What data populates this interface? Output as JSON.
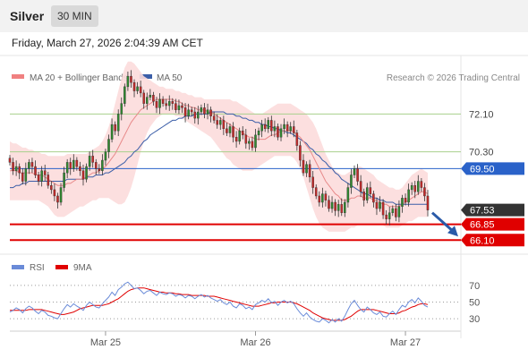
{
  "header": {
    "title": "Silver",
    "timeframe": "30 MIN"
  },
  "timestamp": "Friday, March 27, 2026 2:04:39 AM CET",
  "legend": {
    "items": [
      {
        "label": "MA 20 + Bollinger Bands",
        "color": "#f08080"
      },
      {
        "label": "MA 50",
        "color": "#3b5ea8"
      }
    ],
    "credit": "Research © 2026 Trading Central"
  },
  "rsi_legend": {
    "items": [
      {
        "label": "RSI",
        "color": "#6a8bd8"
      },
      {
        "label": "9MA",
        "color": "#e00000"
      }
    ]
  },
  "colors": {
    "candle_up": "#2f8a2f",
    "candle_down": "#c62828",
    "bollinger_fill": "#fcdcdc",
    "ma20": "#e88a8a",
    "ma50": "#3b5ea8",
    "resistance": "#a8d08d",
    "pivot": "#2a62c9",
    "support": "#e00000",
    "last_price": "#333333"
  },
  "chart_data": [
    {
      "type": "candlestick",
      "title": "Silver 30 MIN",
      "x_ticks": [
        "Mar 25",
        "Mar 26",
        "Mar 27"
      ],
      "ylim": [
        65.6,
        74.8
      ],
      "levels": [
        {
          "label": "72.10",
          "value": 72.1,
          "role": "resistance"
        },
        {
          "label": "70.30",
          "value": 70.3,
          "role": "resistance"
        },
        {
          "label": "69.50",
          "value": 69.5,
          "role": "pivot"
        },
        {
          "label": "67.53",
          "value": 67.53,
          "role": "last"
        },
        {
          "label": "66.85",
          "value": 66.85,
          "role": "support"
        },
        {
          "label": "66.10",
          "value": 66.1,
          "role": "support"
        }
      ],
      "close": [
        69.8,
        69.4,
        69.6,
        69.3,
        68.9,
        69.5,
        69.8,
        69.6,
        69.2,
        68.9,
        69.4,
        69.2,
        68.7,
        68.5,
        68.2,
        67.9,
        68.6,
        69.3,
        69.8,
        69.5,
        69.9,
        69.6,
        69.4,
        69.0,
        69.6,
        70.1,
        69.8,
        69.5,
        69.4,
        69.9,
        70.3,
        70.9,
        71.6,
        71.3,
        72.1,
        72.6,
        73.4,
        73.9,
        73.6,
        73.2,
        73.4,
        73.1,
        72.6,
        72.9,
        73.0,
        72.7,
        72.4,
        72.8,
        72.6,
        72.5,
        72.7,
        72.6,
        72.3,
        72.5,
        72.4,
        72.0,
        72.3,
        72.2,
        71.9,
        72.2,
        72.4,
        72.1,
        72.3,
        72.0,
        71.8,
        71.6,
        71.8,
        71.4,
        71.2,
        71.5,
        71.0,
        70.8,
        71.3,
        71.1,
        70.7,
        70.8,
        70.5,
        71.1,
        71.3,
        71.6,
        71.4,
        71.8,
        71.3,
        71.5,
        71.0,
        71.4,
        71.6,
        71.3,
        71.5,
        71.2,
        70.6,
        69.9,
        69.3,
        69.7,
        69.1,
        68.6,
        68.2,
        67.9,
        68.3,
        68.0,
        67.6,
        67.9,
        67.5,
        67.8,
        67.4,
        67.9,
        68.6,
        69.2,
        69.5,
        68.9,
        68.4,
        68.0,
        68.6,
        68.3,
        67.9,
        67.6,
        67.9,
        67.3,
        67.1,
        67.4,
        67.6,
        67.2,
        67.7,
        68.1,
        67.9,
        68.5,
        68.7,
        68.4,
        68.9,
        68.6,
        68.2,
        67.53
      ],
      "ma20": [
        69.4,
        69.4,
        69.4,
        69.3,
        69.3,
        69.3,
        69.3,
        69.3,
        69.2,
        69.2,
        69.2,
        69.1,
        69.0,
        68.9,
        68.8,
        68.7,
        68.7,
        68.7,
        68.8,
        68.8,
        68.9,
        69.0,
        69.0,
        69.0,
        69.1,
        69.2,
        69.3,
        69.3,
        69.4,
        69.5,
        69.6,
        69.8,
        70.0,
        70.2,
        70.5,
        70.8,
        71.1,
        71.4,
        71.7,
        71.9,
        72.1,
        72.3,
        72.4,
        72.5,
        72.6,
        72.7,
        72.8,
        72.8,
        72.8,
        72.8,
        72.8,
        72.8,
        72.7,
        72.7,
        72.6,
        72.5,
        72.5,
        72.4,
        72.4,
        72.3,
        72.3,
        72.3,
        72.2,
        72.2,
        72.1,
        72.0,
        71.9,
        71.8,
        71.7,
        71.6,
        71.5,
        71.4,
        71.3,
        71.2,
        71.1,
        71.0,
        71.0,
        70.9,
        70.9,
        70.9,
        70.9,
        71.0,
        71.1,
        71.1,
        71.2,
        71.3,
        71.3,
        71.3,
        71.3,
        71.3,
        71.1,
        71.0,
        70.8,
        70.6,
        70.4,
        70.1,
        69.8,
        69.5,
        69.2,
        68.9,
        68.7,
        68.5,
        68.3,
        68.2,
        68.0,
        68.0,
        68.0,
        68.1,
        68.1,
        68.2,
        68.2,
        68.1,
        68.1,
        68.1,
        68.0,
        68.0,
        67.9,
        67.8,
        67.8,
        67.7,
        67.7,
        67.7,
        67.7,
        67.8,
        67.9,
        68.0,
        68.1,
        68.2,
        68.3,
        68.4,
        68.4,
        68.3
      ],
      "bb_upper": [
        70.8,
        70.7,
        70.7,
        70.6,
        70.5,
        70.5,
        70.4,
        70.4,
        70.3,
        70.3,
        70.2,
        70.2,
        70.1,
        70.1,
        70.1,
        70.1,
        70.1,
        70.1,
        70.2,
        70.2,
        70.2,
        70.2,
        70.2,
        70.2,
        70.2,
        70.3,
        70.4,
        70.5,
        70.6,
        70.8,
        71.1,
        71.5,
        72.0,
        72.6,
        73.2,
        73.8,
        74.3,
        74.6,
        74.6,
        74.5,
        74.3,
        74.1,
        73.9,
        73.8,
        73.7,
        73.6,
        73.5,
        73.4,
        73.4,
        73.3,
        73.3,
        73.3,
        73.2,
        73.2,
        73.1,
        73.1,
        73.0,
        73.0,
        72.9,
        72.9,
        72.9,
        72.8,
        72.8,
        72.8,
        72.8,
        72.8,
        72.8,
        72.8,
        72.8,
        72.8,
        72.7,
        72.7,
        72.6,
        72.5,
        72.4,
        72.3,
        72.2,
        72.1,
        72.1,
        72.1,
        72.2,
        72.3,
        72.4,
        72.5,
        72.6,
        72.6,
        72.6,
        72.6,
        72.6,
        72.5,
        72.4,
        72.3,
        72.2,
        72.1,
        71.9,
        71.7,
        71.4,
        71.0,
        70.6,
        70.2,
        69.9,
        69.6,
        69.4,
        69.3,
        69.2,
        69.2,
        69.3,
        69.4,
        69.5,
        69.6,
        69.6,
        69.5,
        69.4,
        69.3,
        69.2,
        69.0,
        68.9,
        68.8,
        68.7,
        68.6,
        68.6,
        68.5,
        68.5,
        68.6,
        68.8,
        69.0,
        69.2,
        69.3,
        69.4,
        69.5,
        69.4,
        69.3
      ],
      "bb_lower": [
        68.0,
        68.0,
        68.0,
        68.0,
        68.0,
        68.0,
        68.0,
        68.0,
        68.0,
        68.0,
        67.9,
        67.8,
        67.7,
        67.5,
        67.3,
        67.2,
        67.2,
        67.2,
        67.3,
        67.4,
        67.5,
        67.6,
        67.7,
        67.7,
        67.8,
        67.9,
        68.0,
        68.0,
        68.1,
        68.1,
        68.1,
        68.1,
        68.0,
        67.9,
        67.8,
        67.8,
        67.9,
        68.2,
        68.6,
        69.1,
        69.7,
        70.3,
        70.8,
        71.2,
        71.5,
        71.7,
        71.9,
        72.0,
        72.1,
        72.1,
        72.1,
        72.1,
        72.0,
        72.0,
        71.9,
        71.8,
        71.7,
        71.6,
        71.5,
        71.4,
        71.3,
        71.2,
        71.1,
        71.0,
        70.8,
        70.6,
        70.4,
        70.2,
        70.0,
        69.9,
        69.7,
        69.6,
        69.5,
        69.4,
        69.4,
        69.4,
        69.4,
        69.5,
        69.6,
        69.7,
        69.8,
        69.9,
        70.0,
        70.1,
        70.1,
        70.1,
        70.1,
        70.1,
        70.1,
        70.0,
        69.8,
        69.5,
        69.1,
        68.6,
        68.1,
        67.6,
        67.2,
        66.9,
        66.7,
        66.6,
        66.5,
        66.5,
        66.5,
        66.5,
        66.5,
        66.5,
        66.6,
        66.7,
        66.7,
        66.8,
        66.8,
        66.8,
        66.8,
        66.8,
        66.8,
        66.8,
        66.8,
        66.8,
        66.7,
        66.7,
        66.7,
        66.7,
        66.7,
        66.8,
        66.9,
        67.0,
        67.0,
        67.1,
        67.2,
        67.2,
        67.2,
        67.2
      ],
      "ma50": [
        68.6,
        68.6,
        68.7,
        68.7,
        68.8,
        68.8,
        68.9,
        68.9,
        68.9,
        68.9,
        68.9,
        68.9,
        68.9,
        68.9,
        68.9,
        68.9,
        68.9,
        68.9,
        69.0,
        69.0,
        69.0,
        69.0,
        69.0,
        69.0,
        69.1,
        69.1,
        69.1,
        69.2,
        69.2,
        69.2,
        69.3,
        69.3,
        69.4,
        69.5,
        69.6,
        69.7,
        69.8,
        70.0,
        70.1,
        70.3,
        70.4,
        70.6,
        70.8,
        70.9,
        71.1,
        71.2,
        71.3,
        71.4,
        71.5,
        71.6,
        71.7,
        71.8,
        71.8,
        71.9,
        71.9,
        72.0,
        72.0,
        72.0,
        72.1,
        72.1,
        72.1,
        72.1,
        72.1,
        72.2,
        72.2,
        72.2,
        72.2,
        72.2,
        72.1,
        72.1,
        72.1,
        72.0,
        72.0,
        71.9,
        71.9,
        71.8,
        71.8,
        71.7,
        71.7,
        71.6,
        71.6,
        71.5,
        71.5,
        71.4,
        71.4,
        71.3,
        71.3,
        71.2,
        71.2,
        71.1,
        71.0,
        70.9,
        70.8,
        70.7,
        70.5,
        70.4,
        70.2,
        70.1,
        69.9,
        69.8,
        69.6,
        69.5,
        69.3,
        69.2,
        69.0,
        68.9,
        68.8,
        68.7,
        68.6,
        68.5,
        68.4,
        68.3,
        68.3,
        68.2,
        68.1,
        68.1,
        68.0,
        68.0,
        67.9,
        67.9,
        67.9,
        67.8,
        67.8,
        67.8,
        67.8,
        67.8,
        67.8,
        67.8,
        67.8,
        67.8,
        67.8,
        67.8
      ]
    },
    {
      "type": "line",
      "title": "RSI",
      "y_ticks": [
        "70",
        "50",
        "30"
      ],
      "ylim": [
        15,
        85
      ],
      "series": [
        {
          "name": "RSI",
          "values": [
            38,
            40,
            43,
            41,
            37,
            42,
            45,
            43,
            39,
            36,
            40,
            38,
            34,
            33,
            31,
            30,
            36,
            42,
            47,
            44,
            48,
            45,
            43,
            40,
            46,
            50,
            47,
            44,
            43,
            48,
            52,
            56,
            62,
            58,
            65,
            68,
            72,
            74,
            70,
            66,
            67,
            64,
            60,
            63,
            64,
            61,
            58,
            62,
            60,
            59,
            61,
            60,
            57,
            59,
            58,
            55,
            58,
            57,
            54,
            57,
            59,
            56,
            58,
            55,
            53,
            51,
            53,
            49,
            47,
            50,
            45,
            43,
            48,
            46,
            42,
            44,
            41,
            47,
            49,
            52,
            50,
            54,
            49,
            51,
            46,
            50,
            52,
            49,
            51,
            48,
            42,
            37,
            33,
            37,
            32,
            29,
            27,
            26,
            30,
            28,
            25,
            29,
            26,
            30,
            27,
            33,
            41,
            48,
            52,
            46,
            41,
            38,
            44,
            41,
            37,
            35,
            38,
            33,
            32,
            36,
            39,
            35,
            41,
            46,
            44,
            50,
            53,
            49,
            55,
            51,
            46,
            44
          ]
        },
        {
          "name": "9MA",
          "values": [
            40,
            40,
            40,
            40,
            40,
            40,
            41,
            41,
            41,
            41,
            41,
            40,
            39,
            38,
            37,
            36,
            35,
            35,
            36,
            37,
            38,
            40,
            42,
            43,
            44,
            45,
            46,
            46,
            46,
            46,
            47,
            48,
            50,
            52,
            54,
            57,
            60,
            63,
            65,
            66,
            67,
            67,
            67,
            66,
            65,
            64,
            63,
            62,
            62,
            61,
            61,
            61,
            60,
            60,
            59,
            59,
            59,
            58,
            58,
            58,
            58,
            58,
            57,
            57,
            57,
            56,
            55,
            54,
            53,
            52,
            51,
            50,
            49,
            48,
            47,
            46,
            45,
            45,
            45,
            46,
            47,
            48,
            49,
            49,
            50,
            50,
            50,
            50,
            50,
            49,
            48,
            46,
            44,
            42,
            40,
            37,
            35,
            33,
            31,
            30,
            29,
            28,
            28,
            28,
            28,
            29,
            31,
            33,
            36,
            39,
            41,
            41,
            41,
            41,
            41,
            40,
            39,
            38,
            37,
            36,
            36,
            36,
            37,
            39,
            40,
            42,
            44,
            45,
            47,
            48,
            48,
            47
          ]
        }
      ]
    }
  ]
}
